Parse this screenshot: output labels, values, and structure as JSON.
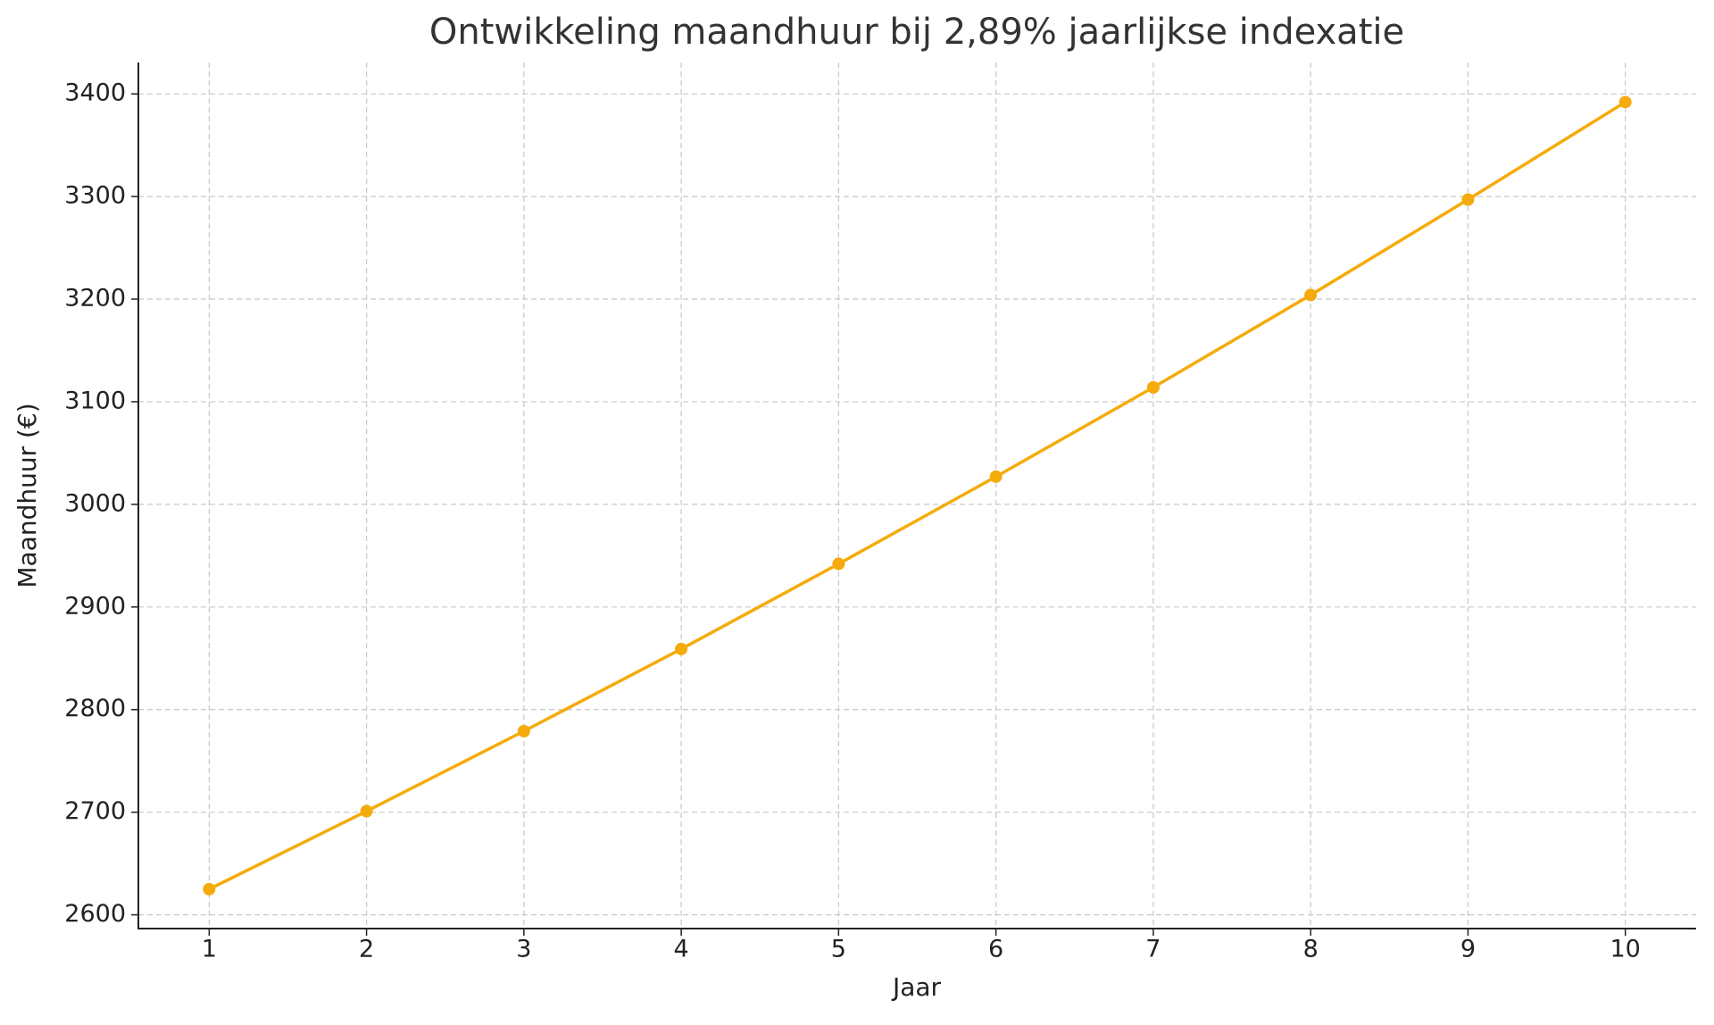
{
  "chart_data": {
    "type": "line",
    "title": "Ontwikkeling maandhuur bij 2,89% jaarlijkse indexatie",
    "x_label": "Jaar",
    "y_label": "Maandhuur (€)",
    "x": [
      1,
      2,
      3,
      4,
      5,
      6,
      7,
      8,
      9,
      10
    ],
    "series": [
      {
        "name": "Maandhuur",
        "color": "#f5ab0b",
        "values": [
          2625,
          2701,
          2779,
          2859,
          2942,
          3027,
          3114,
          3204,
          3297,
          3392
        ]
      }
    ],
    "xlim": [
      0.55,
      10.45
    ],
    "xticks": [
      1,
      2,
      3,
      4,
      5,
      6,
      7,
      8,
      9,
      10
    ],
    "ylim": [
      2586.6,
      3430.6
    ],
    "yticks": [
      2600,
      2700,
      2800,
      2900,
      3000,
      3100,
      3200,
      3300,
      3400
    ],
    "grid": true
  }
}
